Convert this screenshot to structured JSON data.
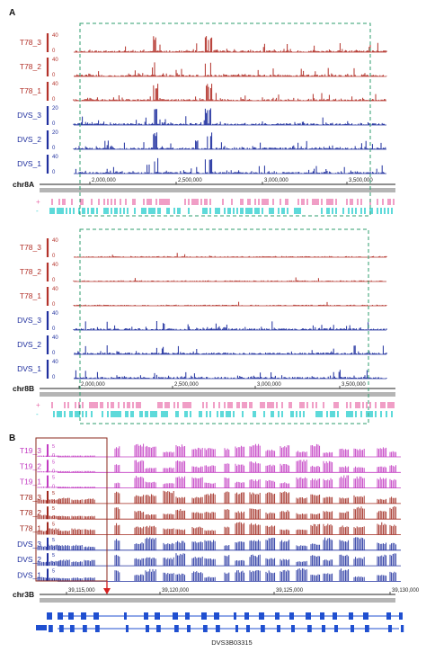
{
  "panels": {
    "A": {
      "label": "A",
      "upper": {
        "chrom": "chr8A",
        "ticks": [
          "2,000,000",
          "2,500,000",
          "3,000,000",
          "3,500,000"
        ],
        "tracks": [
          {
            "name": "T78_3",
            "scale_top": "40",
            "scale_bottom": "0",
            "color": "#b3322a"
          },
          {
            "name": "T78_2",
            "scale_top": "40",
            "scale_bottom": "0",
            "color": "#b3322a"
          },
          {
            "name": "T78_1",
            "scale_top": "40",
            "scale_bottom": "0",
            "color": "#b3322a"
          },
          {
            "name": "DVS_3",
            "scale_top": "20",
            "scale_bottom": "0",
            "color": "#1f2f9e"
          },
          {
            "name": "DVS_2",
            "scale_top": "20",
            "scale_bottom": "0",
            "color": "#1f2f9e"
          },
          {
            "name": "DVS_1",
            "scale_top": "40",
            "scale_bottom": "0",
            "color": "#1f2f9e"
          }
        ]
      },
      "lower": {
        "chrom": "chr8B",
        "ticks": [
          "2,000,000",
          "2,500,000",
          "3,000,000",
          "3,500,000"
        ],
        "tracks": [
          {
            "name": "T78_3",
            "scale_top": "40",
            "scale_bottom": "0",
            "color": "#b3322a"
          },
          {
            "name": "T78_2",
            "scale_top": "40",
            "scale_bottom": "0",
            "color": "#b3322a"
          },
          {
            "name": "T78_1",
            "scale_top": "40",
            "scale_bottom": "0",
            "color": "#b3322a"
          },
          {
            "name": "DVS_3",
            "scale_top": "40",
            "scale_bottom": "0",
            "color": "#1f2f9e"
          },
          {
            "name": "DVS_2",
            "scale_top": "40",
            "scale_bottom": "0",
            "color": "#1f2f9e"
          },
          {
            "name": "DVS_1",
            "scale_top": "40",
            "scale_bottom": "0",
            "color": "#1f2f9e"
          }
        ]
      },
      "strand_plus": "+",
      "strand_minus": "-"
    },
    "B": {
      "label": "B",
      "chrom": "chr3B",
      "ticks": [
        "39,115,000",
        "39,120,000",
        "39,125,000",
        "39,130,000"
      ],
      "tracks": [
        {
          "name": "T19_3",
          "scale_top": "5",
          "scale_bottom": "0",
          "color": "#c23bc2"
        },
        {
          "name": "T19_2",
          "scale_top": "5",
          "scale_bottom": "0",
          "color": "#c23bc2"
        },
        {
          "name": "T19_1",
          "scale_top": "5",
          "scale_bottom": "0",
          "color": "#c23bc2"
        },
        {
          "name": "T78_3",
          "scale_top": "5",
          "scale_bottom": "0",
          "color": "#a0281e"
        },
        {
          "name": "T78_2",
          "scale_top": "5",
          "scale_bottom": "0",
          "color": "#a0281e"
        },
        {
          "name": "T78_1",
          "scale_top": "5",
          "scale_bottom": "0",
          "color": "#a0281e"
        },
        {
          "name": "DVS_3",
          "scale_top": "5",
          "scale_bottom": "0",
          "color": "#1f2f9e"
        },
        {
          "name": "DVS_2",
          "scale_top": "5",
          "scale_bottom": "0",
          "color": "#1f2f9e"
        },
        {
          "name": "DVS_1",
          "scale_top": "5",
          "scale_bottom": "0",
          "color": "#1f2f9e"
        }
      ],
      "gene_name": "DVS3B03315"
    }
  },
  "colors": {
    "highlight_box": "#2e9e6e",
    "region_box": "#8b2a1e",
    "arrow": "#d42020",
    "gene_blue": "#1f4fd0",
    "annot_pink": "#e86aa8",
    "annot_cyan": "#36d0d0",
    "gray_bar": "#b5b5b5"
  }
}
